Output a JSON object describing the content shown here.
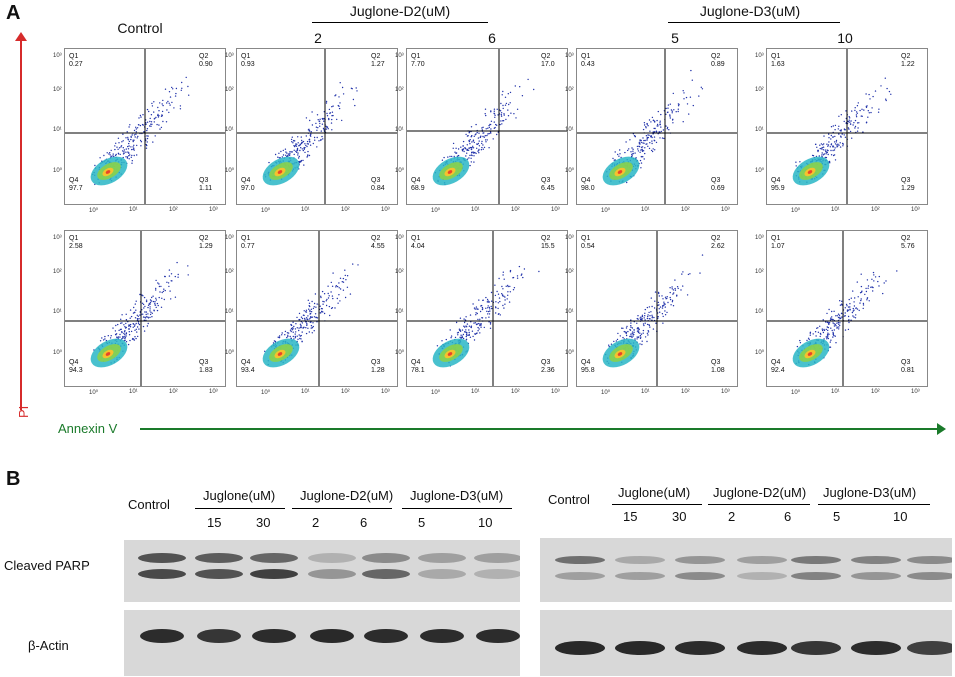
{
  "panel_a": {
    "letter": "A",
    "headers": {
      "control": "Control",
      "d2_group": "Juglone-D2(uM)",
      "d2_doses": [
        "2",
        "6"
      ],
      "d3_group": "Juglone-D3(uM)",
      "d3_doses": [
        "5",
        "10"
      ]
    },
    "y_axis_label": "PI",
    "x_axis_label": "Annexin V",
    "tick_labels": [
      "10⁰",
      "10¹",
      "10²",
      "10³"
    ],
    "quadrant_names": [
      "Q1",
      "Q2",
      "Q3",
      "Q4"
    ],
    "rows": [
      [
        {
          "Q1": "0.27",
          "Q2": "0.90",
          "Q3": "1.11",
          "Q4": "97.7"
        },
        {
          "Q1": "0.93",
          "Q2": "1.27",
          "Q3": "0.84",
          "Q4": "97.0"
        },
        {
          "Q1": "7.70",
          "Q2": "17.0",
          "Q3": "6.45",
          "Q4": "68.9"
        },
        {
          "Q1": "0.43",
          "Q2": "0.89",
          "Q3": "0.69",
          "Q4": "98.0"
        },
        {
          "Q1": "1.63",
          "Q2": "1.22",
          "Q3": "1.29",
          "Q4": "95.9"
        }
      ],
      [
        {
          "Q1": "2.58",
          "Q2": "1.29",
          "Q3": "1.83",
          "Q4": "94.3"
        },
        {
          "Q1": "0.77",
          "Q2": "4.55",
          "Q3": "1.28",
          "Q4": "93.4"
        },
        {
          "Q1": "4.04",
          "Q2": "15.5",
          "Q3": "2.36",
          "Q4": "78.1"
        },
        {
          "Q1": "0.54",
          "Q2": "2.62",
          "Q3": "1.08",
          "Q4": "95.8"
        },
        {
          "Q1": "1.07",
          "Q2": "5.76",
          "Q3": "0.81",
          "Q4": "92.4"
        }
      ]
    ]
  },
  "panel_b": {
    "letter": "B",
    "row_labels": [
      "Cleaved PARP",
      "β-Actin"
    ],
    "left": {
      "control": "Control",
      "juglone": "Juglone(uM)",
      "juglone_doses": [
        "15",
        "30"
      ],
      "d2": "Juglone-D2(uM)",
      "d2_doses": [
        "2",
        "6"
      ],
      "d3": "Juglone-D3(uM)",
      "d3_doses": [
        "5",
        "10"
      ]
    },
    "right": {
      "control": "Control",
      "juglone": "Juglone(uM)",
      "juglone_doses": [
        "15",
        "30"
      ],
      "d2": "Juglone-D2(uM)",
      "d2_doses": [
        "2",
        "6"
      ],
      "d3": "Juglone-D3(uM)",
      "d3_doses": [
        "5",
        "10"
      ]
    },
    "band_color": "#1a1a1a",
    "membrane_color": "#d8d8d8"
  }
}
